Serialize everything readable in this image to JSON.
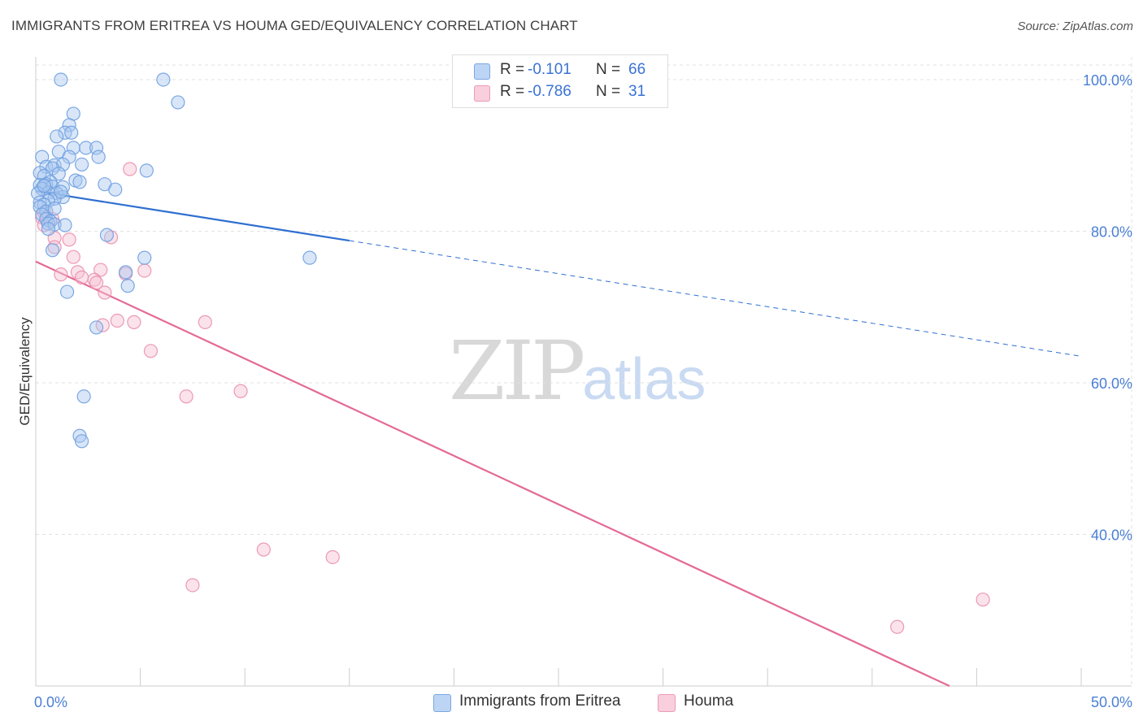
{
  "title": "IMMIGRANTS FROM ERITREA VS HOUMA GED/EQUIVALENCY CORRELATION CHART",
  "source": "Source: ZipAtlas.com",
  "watermark": {
    "part1": "ZIP",
    "part2": "atlas"
  },
  "legend": {
    "rows": [
      {
        "r_label": "R =",
        "r_value": "-0.101",
        "n_label": "N =",
        "n_value": "66"
      },
      {
        "r_label": "R =",
        "r_value": "-0.786",
        "n_label": "N =",
        "n_value": "31"
      }
    ]
  },
  "bottom_legend": [
    "Immigrants from Eritrea",
    "Houma"
  ],
  "colors": {
    "blue_fill": "#a9c8f0",
    "blue_stroke": "#6f9fe0",
    "blue_line": "#2f6fd0",
    "pink_fill": "#f7c0d3",
    "pink_stroke": "#ea8fae",
    "pink_line": "#e46a96",
    "grid": "#e2e2e2",
    "tick_text": "#4a7fd4"
  },
  "chart_data": {
    "type": "scatter",
    "title": "IMMIGRANTS FROM ERITREA VS HOUMA GED/EQUIVALENCY CORRELATION CHART",
    "xlabel": "",
    "ylabel": "GED/Equivalency",
    "xlim": [
      0,
      50
    ],
    "ylim": [
      20,
      103
    ],
    "x_ticks_labeled": [
      "0.0%",
      "50.0%"
    ],
    "y_ticks": [
      40,
      60,
      80,
      100
    ],
    "y_tick_labels": [
      "40.0%",
      "60.0%",
      "80.0%",
      "100.0%"
    ],
    "grid": true,
    "series": [
      {
        "name": "Immigrants from Eritrea",
        "R": -0.101,
        "N": 66,
        "trend": {
          "x0": 0,
          "y0": 85.3,
          "x_solid_end": 15,
          "x1": 50,
          "y1": 63.5
        },
        "points": [
          [
            1.2,
            100.0
          ],
          [
            6.1,
            100.0
          ],
          [
            6.8,
            97.0
          ],
          [
            1.8,
            95.5
          ],
          [
            1.6,
            94.0
          ],
          [
            1.4,
            93.0
          ],
          [
            1.7,
            93.0
          ],
          [
            1.0,
            92.5
          ],
          [
            1.1,
            90.5
          ],
          [
            1.8,
            91.0
          ],
          [
            2.4,
            91.0
          ],
          [
            2.9,
            91.0
          ],
          [
            0.3,
            89.8
          ],
          [
            1.6,
            89.8
          ],
          [
            3.0,
            89.8
          ],
          [
            0.5,
            88.5
          ],
          [
            0.9,
            88.7
          ],
          [
            1.3,
            88.8
          ],
          [
            0.8,
            88.3
          ],
          [
            2.2,
            88.8
          ],
          [
            5.3,
            88.0
          ],
          [
            0.2,
            87.7
          ],
          [
            0.4,
            87.3
          ],
          [
            1.1,
            87.6
          ],
          [
            1.9,
            86.7
          ],
          [
            2.1,
            86.5
          ],
          [
            0.7,
            86.5
          ],
          [
            0.2,
            86.1
          ],
          [
            0.5,
            86.2
          ],
          [
            0.4,
            86.0
          ],
          [
            0.3,
            85.6
          ],
          [
            0.8,
            85.9
          ],
          [
            1.3,
            85.8
          ],
          [
            3.3,
            86.2
          ],
          [
            3.8,
            85.5
          ],
          [
            0.6,
            85.1
          ],
          [
            0.1,
            85.0
          ],
          [
            1.0,
            85.0
          ],
          [
            1.3,
            84.5
          ],
          [
            0.9,
            84.3
          ],
          [
            0.6,
            84.0
          ],
          [
            0.2,
            83.8
          ],
          [
            0.4,
            83.5
          ],
          [
            0.2,
            83.2
          ],
          [
            0.5,
            82.6
          ],
          [
            0.9,
            83.0
          ],
          [
            0.3,
            82.2
          ],
          [
            0.5,
            81.6
          ],
          [
            0.7,
            81.3
          ],
          [
            0.6,
            81.0
          ],
          [
            0.9,
            80.9
          ],
          [
            1.4,
            80.8
          ],
          [
            0.6,
            80.3
          ],
          [
            3.4,
            79.5
          ],
          [
            0.8,
            77.5
          ],
          [
            5.2,
            76.5
          ],
          [
            13.1,
            76.5
          ],
          [
            4.3,
            74.6
          ],
          [
            4.4,
            72.8
          ],
          [
            1.5,
            72.0
          ],
          [
            2.9,
            67.3
          ],
          [
            2.3,
            58.2
          ],
          [
            2.1,
            53.0
          ],
          [
            2.2,
            52.3
          ],
          [
            0.4,
            86.0
          ],
          [
            1.2,
            85.2
          ]
        ]
      },
      {
        "name": "Houma",
        "R": -0.786,
        "N": 31,
        "trend": {
          "x0": 0,
          "y0": 76.0,
          "x1": 43.7,
          "y1": 20.0
        },
        "points": [
          [
            4.5,
            88.2
          ],
          [
            0.4,
            82.5
          ],
          [
            0.3,
            81.8
          ],
          [
            0.8,
            81.6
          ],
          [
            0.4,
            80.8
          ],
          [
            3.6,
            79.2
          ],
          [
            0.9,
            79.1
          ],
          [
            1.6,
            78.9
          ],
          [
            0.9,
            77.9
          ],
          [
            1.8,
            76.6
          ],
          [
            2.0,
            74.6
          ],
          [
            3.1,
            74.9
          ],
          [
            5.2,
            74.8
          ],
          [
            4.3,
            74.4
          ],
          [
            1.2,
            74.3
          ],
          [
            2.2,
            73.9
          ],
          [
            2.8,
            73.6
          ],
          [
            2.9,
            73.2
          ],
          [
            3.3,
            71.9
          ],
          [
            3.9,
            68.2
          ],
          [
            4.7,
            68.0
          ],
          [
            8.1,
            68.0
          ],
          [
            3.2,
            67.6
          ],
          [
            5.5,
            64.2
          ],
          [
            7.2,
            58.2
          ],
          [
            9.8,
            58.9
          ],
          [
            10.9,
            38.0
          ],
          [
            14.2,
            37.0
          ],
          [
            7.5,
            33.3
          ],
          [
            45.3,
            31.4
          ],
          [
            41.2,
            27.8
          ]
        ]
      }
    ]
  }
}
